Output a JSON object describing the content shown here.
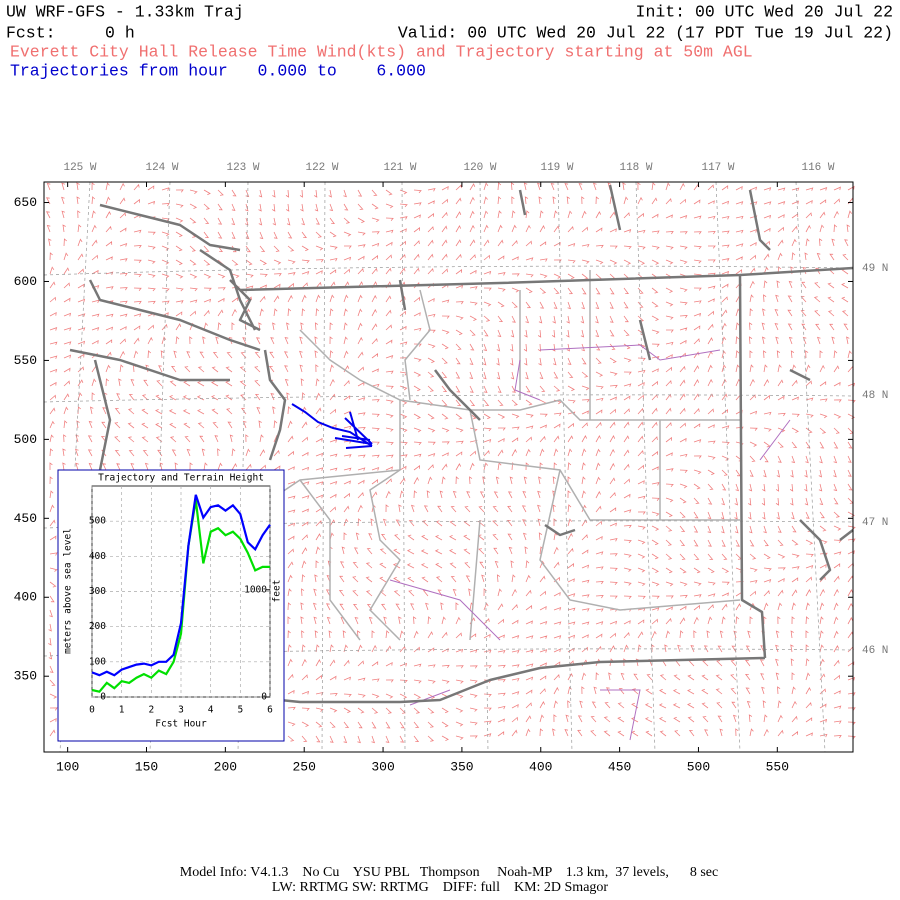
{
  "header": {
    "title": "UW WRF-GFS - 1.33km Traj",
    "init": "Init: 00 UTC Wed 20 Jul 22",
    "fcst": "Fcst:     0 h",
    "valid": "Valid: 00 UTC Wed 20 Jul 22 (17 PDT Tue 19 Jul 22)",
    "subtitle": "Everett City Hall Release Time Wind(kts) and Trajectory starting at 50m AGL",
    "traj_hours": "Trajectories from hour   0.000 to    6.000"
  },
  "map": {
    "xlim": [
      85,
      598
    ],
    "ylim": [
      302,
      663
    ],
    "xticks": [
      100,
      150,
      200,
      250,
      300,
      350,
      400,
      450,
      500,
      550
    ],
    "yticks": [
      350,
      400,
      450,
      500,
      550,
      600,
      650
    ],
    "lon_labels": [
      "125 W",
      "124 W",
      "123 W",
      "122 W",
      "121 W",
      "120 W",
      "119 W",
      "118 W",
      "117 W",
      "116 W"
    ],
    "lat_labels": [
      "49 N",
      "48 N",
      "47 N",
      "46 N"
    ]
  },
  "inset": {
    "title": "Trajectory and Terrain Height",
    "xlabel": "Fcst Hour",
    "ylabel": "meters above sea level",
    "y2label": "feet",
    "xlim": [
      0,
      6
    ],
    "ylim": [
      0,
      600
    ],
    "y2lim": [
      0,
      1968.5
    ],
    "xticks": [
      0,
      1,
      2,
      3,
      4,
      5,
      6
    ],
    "yticks": [
      0,
      100,
      200,
      300,
      400,
      500
    ],
    "y2ticks": [
      0,
      1000
    ],
    "x": [
      0,
      0.25,
      0.5,
      0.75,
      1,
      1.25,
      1.5,
      1.75,
      2,
      2.25,
      2.5,
      2.75,
      3,
      3.25,
      3.5,
      3.75,
      4,
      4.25,
      4.5,
      4.75,
      5,
      5.25,
      5.5,
      5.75,
      6
    ],
    "series": [
      {
        "color": "#00e000",
        "values": [
          20,
          15,
          40,
          25,
          45,
          40,
          55,
          65,
          55,
          75,
          65,
          100,
          180,
          430,
          560,
          380,
          470,
          480,
          460,
          470,
          450,
          410,
          360,
          370,
          370
        ]
      },
      {
        "color": "#0000ff",
        "values": [
          70,
          62,
          72,
          62,
          78,
          85,
          92,
          95,
          90,
          100,
          100,
          120,
          210,
          430,
          575,
          510,
          540,
          545,
          530,
          545,
          520,
          440,
          420,
          460,
          490
        ]
      }
    ]
  },
  "footer": {
    "line1": "Model Info: V4.1.3    No Cu    YSU PBL   Thompson     Noah-MP    1.3 km,  37 levels,      8 sec",
    "line2": "LW: RRTMG SW: RRTMG    DIFF: full    KM: 2D Smagor"
  }
}
